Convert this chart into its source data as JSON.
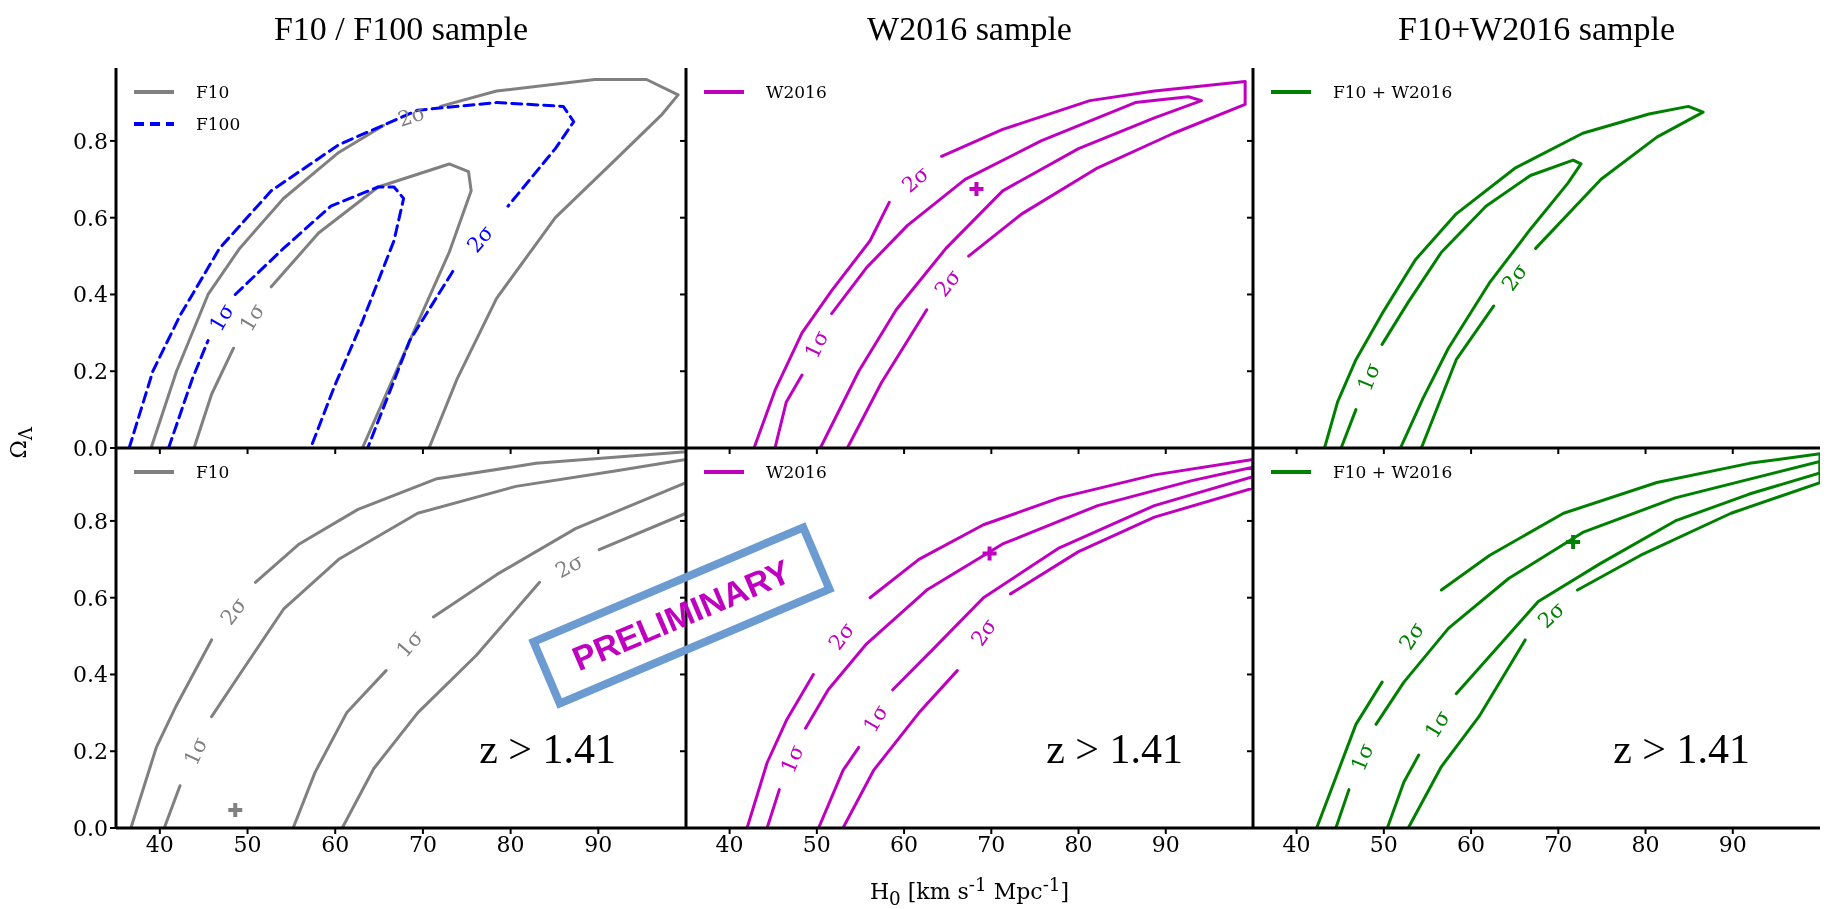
{
  "chart_data": [
    {
      "type": "line",
      "title": "F10 / F100 sample",
      "ylabel": "Ω$_{Λ}$",
      "xlim": [
        35,
        100
      ],
      "ylim": [
        0,
        0.99
      ],
      "xticks": [
        40,
        50,
        60,
        70,
        80,
        90
      ],
      "yticks": [
        {
          "value": 0,
          "label": "0.0"
        },
        {
          "value": 0.2,
          "label": "0.2"
        },
        {
          "value": 0.4,
          "label": "0.4"
        },
        {
          "value": 0.6,
          "label": "0.6"
        },
        {
          "value": 0.8,
          "label": "0.8"
        }
      ],
      "tick_labels": "y",
      "legend": "top left",
      "series": [
        {
          "name": "F10",
          "color": "#808080",
          "x": [
            39.0,
            41.9,
            45.5,
            49.1,
            54.1,
            60.4,
            65.5,
            68.7,
            72,
            78.4,
            89.6,
            95.5,
            99.1,
            97.3,
            91.9,
            85.1,
            78.4,
            73.9,
            70.7
          ],
          "values": [
            0,
            0.2,
            0.4,
            0.52,
            0.65,
            0.77,
            0.84,
            null,
            0.89,
            0.93,
            0.96,
            0.96,
            0.92,
            0.87,
            0.75,
            0.6,
            0.39,
            0.18,
            0
          ]
        },
        {
          "color": "#808080",
          "x": [
            43.9,
            45.9,
            48.4,
            50.5,
            52.7,
            58.1,
            64.9,
            73,
            75.2,
            75.5,
            73,
            68.5,
            63.1
          ],
          "values": [
            0,
            0.14,
            0.26,
            null,
            0.42,
            0.56,
            0.68,
            0.74,
            0.72,
            0.67,
            0.51,
            0.28,
            0
          ]
        },
        {
          "name": "F100",
          "color": "#0000ff",
          "line_style": "dashed",
          "x": [
            36.5,
            39.2,
            42.3,
            46.8,
            52.7,
            60.4,
            69.4,
            78.4,
            86,
            87.2,
            85.1,
            79.7,
            76.6,
            73.4,
            68.5,
            63.7
          ],
          "values": [
            0,
            0.2,
            0.345,
            0.52,
            0.67,
            0.79,
            0.88,
            0.9,
            0.89,
            0.85,
            0.78,
            0.63,
            null,
            0.46,
            0.28,
            0
          ]
        },
        {
          "color": "#0000ff",
          "line_style": "dashed",
          "x": [
            41,
            43.7,
            45.5,
            47,
            48.6,
            54.1,
            59.5,
            64.9,
            66.7,
            67.8,
            66.7,
            63.1,
            59.9,
            57.2
          ],
          "values": [
            0,
            0.18,
            0.28,
            null,
            0.4,
            0.52,
            0.63,
            0.68,
            0.68,
            0.65,
            0.54,
            0.33,
            0.16,
            0
          ]
        }
      ],
      "annotations": [
        {
          "text": "2σ",
          "x": 65.5,
          "y": 0.84
        },
        {
          "text": "1σ",
          "x": 48.4,
          "y": 0.26
        },
        {
          "text": "1σ",
          "x": 45.5,
          "y": 0.28
        },
        {
          "text": "2σ",
          "x": 79.7,
          "y": 0.63
        }
      ]
    },
    {
      "type": "line",
      "title": "W2016 sample",
      "xlim": [
        35,
        100
      ],
      "ylim": [
        0,
        0.99
      ],
      "xticks": [
        40,
        50,
        60,
        70,
        80,
        90
      ],
      "yticks": [
        0,
        0.2,
        0.4,
        0.6,
        0.8
      ],
      "tick_labels": false,
      "legend": "top left",
      "series": [
        {
          "name": "W2016",
          "color": "#bf00bf",
          "x": [
            42.8,
            45.2,
            48.3,
            51.7,
            56.1,
            58.3,
            61.3,
            64.3,
            71.3,
            81.3,
            88.7,
            99.1,
            99.1,
            90.9,
            82.2,
            73.5,
            67.4,
            65,
            62.6,
            57.4,
            53.5
          ],
          "values": [
            0,
            0.15,
            0.3,
            0.41,
            0.54,
            0.64,
            null,
            0.76,
            0.83,
            0.905,
            0.93,
            0.955,
            0.895,
            0.82,
            0.73,
            0.61,
            0.5,
            null,
            0.36,
            0.17,
            0
          ]
        },
        {
          "color": "#bf00bf",
          "x": [
            45.2,
            46.5,
            48.3,
            50,
            51.7,
            55.7,
            60.4,
            67,
            75.7,
            86.5,
            92.6,
            94.1,
            88.7,
            80,
            71.3,
            64.8,
            59.1,
            54.8,
            50.4
          ],
          "values": [
            0,
            0.12,
            0.19,
            null,
            0.35,
            0.47,
            0.58,
            0.7,
            0.8,
            0.9,
            0.915,
            0.905,
            0.86,
            0.78,
            0.67,
            0.52,
            0.36,
            0.2,
            0
          ]
        },
        {
          "type": "scatter",
          "marker": "cross",
          "color": "#bf00bf",
          "x": [
            68.3
          ],
          "values": [
            0.675
          ]
        }
      ],
      "annotations": [
        {
          "text": "2σ",
          "x": 58.3,
          "y": 0.64
        },
        {
          "text": "2σ",
          "x": 67.4,
          "y": 0.5
        },
        {
          "text": "1σ",
          "x": 48.3,
          "y": 0.19
        }
      ]
    },
    {
      "type": "line",
      "title": "F10+W2016 sample",
      "xlim": [
        35,
        100
      ],
      "ylim": [
        0,
        0.99
      ],
      "xticks": [
        40,
        50,
        60,
        70,
        80,
        90
      ],
      "yticks": [
        0,
        0.2,
        0.4,
        0.6,
        0.8
      ],
      "tick_labels": false,
      "legend": "top left",
      "series": [
        {
          "name": "F10 + W2016",
          "color": "#008000",
          "x": [
            43.2,
            44.7,
            46.8,
            49.8,
            53.6,
            58.3,
            65.1,
            72.8,
            80.4,
            84.9,
            86.6,
            81.3,
            74.9,
            67.4,
            65,
            62.6,
            58.3,
            54.3
          ],
          "values": [
            0,
            0.12,
            0.23,
            0.35,
            0.49,
            0.61,
            0.73,
            0.82,
            0.87,
            0.89,
            0.875,
            0.81,
            0.7,
            0.52,
            null,
            0.37,
            0.23,
            0
          ]
        },
        {
          "color": "#008000",
          "x": [
            45.1,
            46.8,
            48.3,
            49.8,
            52.8,
            56.6,
            61.7,
            66.8,
            71.7,
            72.6,
            71.1,
            66.8,
            62.1,
            57.4,
            54.5,
            51.9
          ],
          "values": [
            0,
            0.1,
            null,
            0.27,
            0.38,
            0.51,
            0.63,
            0.71,
            0.75,
            0.74,
            0.69,
            0.57,
            0.43,
            0.26,
            0.13,
            0
          ]
        }
      ],
      "annotations": [
        {
          "text": "2σ",
          "x": 67.4,
          "y": 0.52
        },
        {
          "text": "1σ",
          "x": 46.8,
          "y": 0.1
        }
      ]
    },
    {
      "type": "line",
      "xlim": [
        35,
        100
      ],
      "ylim": [
        0,
        0.99
      ],
      "xticks": [
        40,
        50,
        60,
        70,
        80,
        90
      ],
      "yticks": [
        {
          "value": 0,
          "label": "0.0"
        },
        {
          "value": 0.2,
          "label": "0.2"
        },
        {
          "value": 0.4,
          "label": "0.4"
        },
        {
          "value": 0.6,
          "label": "0.6"
        },
        {
          "value": 0.8,
          "label": "0.8"
        }
      ],
      "legend": "top left",
      "series": [
        {
          "name": "F10",
          "color": "#808080",
          "x": [
            36.7,
            39.6,
            41.9,
            45.9,
            48.4,
            50.9,
            55.9,
            62.6,
            71.6,
            82.9,
            100,
            100,
            90.1,
            86.7,
            83.3,
            76.1,
            69.4,
            64.4,
            60.8
          ],
          "values": [
            0,
            0.21,
            0.32,
            0.49,
            null,
            0.64,
            0.74,
            0.83,
            0.91,
            0.95,
            0.98,
            0.82,
            0.725,
            null,
            0.64,
            0.45,
            0.3,
            0.155,
            0
          ]
        },
        {
          "color": "#808080",
          "x": [
            40.5,
            42.3,
            44.1,
            45.9,
            49.1,
            54.1,
            60.4,
            69.4,
            80.6,
            91.9,
            100,
            100,
            87.4,
            78.4,
            71.2,
            68.5,
            65.8,
            61.3,
            57.7,
            55.2
          ],
          "values": [
            0,
            0.11,
            null,
            0.29,
            0.4,
            0.57,
            0.7,
            0.82,
            0.89,
            0.93,
            0.96,
            0.9,
            0.78,
            0.66,
            0.55,
            null,
            0.41,
            0.3,
            0.145,
            0
          ]
        },
        {
          "type": "scatter",
          "marker": "cross",
          "color": "#808080",
          "x": [
            48.6
          ],
          "values": [
            0.047
          ]
        }
      ],
      "annotations": [
        "z > 1.41",
        "PRELIMINARY",
        {
          "text": "2σ",
          "x": 45.9,
          "y": 0.49
        },
        {
          "text": "1σ",
          "x": 42.3,
          "y": 0.11
        },
        {
          "text": "1σ",
          "x": 71.2,
          "y": 0.55
        },
        {
          "text": "2σ",
          "x": 90.1,
          "y": 0.725
        }
      ]
    },
    {
      "type": "line",
      "xlabel": "H$_{0}$ [km s$^{-1}$ Mpc$^{-1}$]",
      "xlim": [
        35,
        100
      ],
      "ylim": [
        0,
        0.99
      ],
      "xticks": [
        40,
        50,
        60,
        70,
        80,
        90
      ],
      "yticks": [
        0,
        0.2,
        0.4,
        0.6,
        0.8
      ],
      "tick_labels": "x",
      "legend": "top left",
      "series": [
        {
          "name": "W2016",
          "color": "#bf00bf",
          "x": [
            42,
            44.3,
            46.5,
            49.6,
            52.9,
            56.1,
            61.7,
            69.1,
            77.8,
            88.7,
            100,
            100,
            88.7,
            80,
            72.2,
            69.2,
            66.1,
            61.7,
            56.5,
            53
          ],
          "values": [
            0,
            0.17,
            0.28,
            0.4,
            null,
            0.6,
            0.7,
            0.79,
            0.86,
            0.92,
            0.96,
            0.885,
            0.81,
            0.72,
            0.61,
            null,
            0.41,
            0.3,
            0.15,
            0
          ]
        },
        {
          "color": "#bf00bf",
          "x": [
            44.3,
            45.7,
            47.2,
            48.7,
            51.3,
            55.7,
            62.6,
            71.3,
            82.2,
            93,
            100,
            100,
            88.7,
            77.8,
            69.1,
            63.5,
            58.7,
            56.7,
            54.8,
            53,
            50.2
          ],
          "values": [
            0,
            0.1,
            null,
            0.26,
            0.36,
            0.48,
            0.62,
            0.74,
            0.84,
            0.905,
            0.94,
            0.915,
            0.84,
            0.73,
            0.6,
            0.47,
            0.36,
            null,
            0.21,
            0.15,
            0
          ]
        },
        {
          "type": "scatter",
          "marker": "cross",
          "color": "#bf00bf",
          "x": [
            69.8
          ],
          "values": [
            0.715
          ]
        }
      ],
      "annotations": [
        "z > 1.41",
        {
          "text": "2σ",
          "x": 49.6,
          "y": 0.4
        },
        {
          "text": "1σ",
          "x": 45.7,
          "y": 0.1
        },
        {
          "text": "1σ",
          "x": 58.7,
          "y": 0.36
        },
        {
          "text": "2σ",
          "x": 72.2,
          "y": 0.61
        }
      ]
    },
    {
      "type": "line",
      "xlim": [
        35,
        100
      ],
      "ylim": [
        0,
        0.99
      ],
      "xticks": [
        40,
        50,
        60,
        70,
        80,
        90
      ],
      "yticks": [
        0,
        0.2,
        0.4,
        0.6,
        0.8
      ],
      "tick_labels": "x",
      "legend": "top left",
      "series": [
        {
          "name": "F10 + W2016",
          "color": "#008000",
          "x": [
            42.3,
            44.3,
            46.8,
            49.8,
            53.2,
            56.6,
            62.1,
            70.6,
            81.3,
            91.9,
            100,
            100,
            89.8,
            79.4,
            72.2,
            69.2,
            66.2,
            60.9,
            56.6,
            52.8
          ],
          "values": [
            0,
            0.12,
            0.27,
            0.38,
            null,
            0.62,
            0.71,
            0.82,
            0.9,
            0.95,
            0.975,
            0.9,
            0.82,
            0.71,
            0.62,
            null,
            0.49,
            0.29,
            0.16,
            0
          ]
        },
        {
          "color": "#008000",
          "x": [
            44.5,
            46,
            47.5,
            49.1,
            52.3,
            57.4,
            64.3,
            72.8,
            83.4,
            100,
            100,
            91.9,
            83.4,
            74.9,
            67.7,
            63.4,
            58.3,
            56.1,
            54,
            52.3,
            50.4
          ],
          "values": [
            0,
            0.1,
            null,
            0.27,
            0.38,
            0.52,
            0.65,
            0.77,
            0.86,
            0.955,
            0.925,
            0.87,
            0.8,
            0.69,
            0.59,
            0.48,
            0.35,
            null,
            0.19,
            0.12,
            0
          ]
        },
        {
          "type": "scatter",
          "marker": "cross",
          "color": "#008000",
          "x": [
            71.7
          ],
          "values": [
            0.745
          ]
        }
      ],
      "annotations": [
        "z > 1.41",
        {
          "text": "2σ",
          "x": 49.8,
          "y": 0.38
        },
        {
          "text": "1σ",
          "x": 46,
          "y": 0.1
        },
        {
          "text": "1σ",
          "x": 58.3,
          "y": 0.35
        },
        {
          "text": "2σ",
          "x": 72.2,
          "y": 0.62
        }
      ]
    }
  ]
}
